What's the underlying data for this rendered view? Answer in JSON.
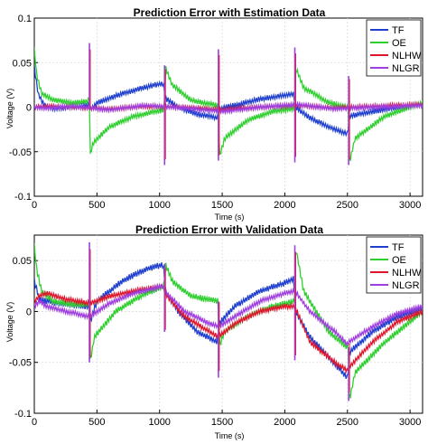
{
  "chart_data": [
    {
      "type": "line",
      "title": "Prediction Error with Estimation Data",
      "xlabel": "Time (s)",
      "ylabel": "Voltage (V)",
      "xlim": [
        0,
        3100
      ],
      "ylim": [
        -0.1,
        0.1
      ],
      "xticks": [
        0,
        500,
        1000,
        1500,
        2000,
        2500,
        3000
      ],
      "xtick_labels": [
        "0",
        "500",
        "1000",
        "1500",
        "2000",
        "2500",
        "3000"
      ],
      "yticks": [
        0.1,
        0.05,
        0,
        -0.05,
        -0.1
      ],
      "ytick_labels": [
        "0.1",
        "0.05",
        "0",
        "-0.05",
        "-0.1"
      ],
      "grid": true,
      "legend": "top-right",
      "series": [
        {
          "name": "TF",
          "color": "#1f3fcf",
          "x": [
            0,
            30,
            80,
            150,
            300,
            430,
            440,
            445,
            500,
            700,
            900,
            1030,
            1040,
            1045,
            1150,
            1300,
            1460,
            1470,
            1475,
            1600,
            1800,
            2000,
            2070,
            2080,
            2085,
            2200,
            2350,
            2500,
            2510,
            2515,
            2700,
            2900,
            3100
          ],
          "y": [
            0.045,
            0.015,
            0.002,
            -0.002,
            0.0,
            0.002,
            0.003,
            -0.003,
            0.005,
            0.015,
            0.023,
            0.027,
            0.018,
            0.01,
            0.0,
            -0.008,
            -0.012,
            -0.01,
            -0.002,
            0.002,
            0.009,
            0.013,
            0.015,
            0.005,
            0.0,
            -0.012,
            -0.022,
            -0.03,
            -0.02,
            -0.01,
            -0.005,
            0.0,
            0.003
          ]
        },
        {
          "name": "OE",
          "color": "#2fcf2f",
          "x": [
            0,
            20,
            60,
            150,
            300,
            430,
            440,
            445,
            470,
            600,
            800,
            1030,
            1040,
            1045,
            1100,
            1250,
            1460,
            1470,
            1475,
            1520,
            1700,
            1900,
            2070,
            2080,
            2085,
            2150,
            2350,
            2500,
            2510,
            2515,
            2560,
            2800,
            3100
          ],
          "y": [
            0.065,
            0.035,
            0.015,
            0.008,
            0.005,
            0.007,
            0.01,
            -0.055,
            -0.04,
            -0.022,
            -0.01,
            -0.003,
            -0.003,
            0.045,
            0.025,
            0.008,
            0.002,
            0.002,
            -0.058,
            -0.035,
            -0.015,
            -0.005,
            -0.002,
            -0.002,
            0.045,
            0.022,
            0.005,
            0.0,
            0.0,
            -0.063,
            -0.035,
            -0.01,
            0.005
          ]
        },
        {
          "name": "NLHW",
          "color": "#e0152b",
          "x": [
            0,
            100,
            300,
            600,
            900,
            1200,
            1500,
            1800,
            2100,
            2400,
            2700,
            3100
          ],
          "y": [
            0.0,
            0.001,
            0.0,
            -0.002,
            0.001,
            0.0,
            -0.003,
            0.0,
            0.002,
            -0.001,
            0.001,
            0.003
          ]
        },
        {
          "name": "NLGR",
          "color": "#9f3fdf",
          "x": [
            0,
            100,
            300,
            600,
            900,
            1200,
            1500,
            1800,
            2100,
            2400,
            2700,
            3100
          ],
          "y": [
            0.0,
            -0.001,
            0.001,
            -0.003,
            0.002,
            -0.001,
            -0.005,
            0.0,
            0.003,
            -0.002,
            0.0,
            0.002
          ]
        }
      ],
      "spikes": [
        {
          "x": 440,
          "top": 0.072,
          "bottom": -0.003
        },
        {
          "x": 1040,
          "top": 0.047,
          "bottom": -0.065
        },
        {
          "x": 1470,
          "top": 0.065,
          "bottom": -0.06
        },
        {
          "x": 2080,
          "top": 0.067,
          "bottom": -0.062
        },
        {
          "x": 2510,
          "top": 0.035,
          "bottom": -0.065
        }
      ]
    },
    {
      "type": "line",
      "title": "Prediction Error with Validation Data",
      "xlabel": "Time (s)",
      "ylabel": "Voltage (V)",
      "xlim": [
        0,
        3100
      ],
      "ylim": [
        -0.1,
        0.075
      ],
      "xticks": [
        0,
        500,
        1000,
        1500,
        2000,
        2500,
        3000
      ],
      "xtick_labels": [
        "0",
        "500",
        "1000",
        "1500",
        "2000",
        "2500",
        "3000"
      ],
      "yticks": [
        0.05,
        0,
        -0.05,
        -0.1
      ],
      "ytick_labels": [
        "0.05",
        "0",
        "-0.05",
        "-0.1"
      ],
      "grid": true,
      "legend": "top-right",
      "series": [
        {
          "name": "TF",
          "color": "#1f3fcf",
          "x": [
            0,
            40,
            100,
            200,
            330,
            430,
            440,
            445,
            500,
            700,
            900,
            1030,
            1040,
            1045,
            1150,
            1300,
            1460,
            1470,
            1475,
            1600,
            1800,
            2000,
            2070,
            2080,
            2085,
            2200,
            2350,
            2500,
            2510,
            2515,
            2700,
            2900,
            3100
          ],
          "y": [
            0.03,
            0.012,
            0.01,
            0.008,
            0.006,
            0.005,
            0.002,
            -0.01,
            0.01,
            0.03,
            0.042,
            0.046,
            0.035,
            0.02,
            0.0,
            -0.02,
            -0.03,
            -0.025,
            -0.012,
            0.005,
            0.02,
            0.028,
            0.032,
            0.015,
            0.0,
            -0.025,
            -0.045,
            -0.065,
            -0.055,
            -0.04,
            -0.02,
            -0.005,
            0.003
          ]
        },
        {
          "name": "OE",
          "color": "#2fcf2f",
          "x": [
            0,
            20,
            60,
            150,
            300,
            430,
            440,
            445,
            480,
            650,
            850,
            1030,
            1040,
            1045,
            1100,
            1250,
            1460,
            1470,
            1475,
            1520,
            1700,
            1900,
            2070,
            2080,
            2085,
            2150,
            2350,
            2500,
            2510,
            2515,
            2560,
            2800,
            3100
          ],
          "y": [
            0.065,
            0.04,
            0.02,
            0.01,
            0.007,
            0.007,
            0.008,
            -0.05,
            -0.025,
            0.0,
            0.015,
            0.025,
            0.027,
            0.047,
            0.03,
            0.015,
            0.01,
            0.01,
            -0.035,
            -0.02,
            -0.005,
            0.005,
            0.01,
            0.012,
            0.065,
            0.02,
            -0.02,
            -0.035,
            -0.035,
            -0.088,
            -0.06,
            -0.03,
            0.0
          ]
        },
        {
          "name": "NLHW",
          "color": "#e0152b",
          "x": [
            0,
            40,
            100,
            250,
            440,
            600,
            800,
            1030,
            1040,
            1200,
            1400,
            1470,
            1600,
            1800,
            2000,
            2080,
            2200,
            2400,
            2500,
            2510,
            2700,
            2900,
            3100
          ],
          "y": [
            0.01,
            0.015,
            0.018,
            0.012,
            0.008,
            0.015,
            0.02,
            0.025,
            0.018,
            -0.005,
            -0.02,
            -0.025,
            -0.012,
            0.0,
            0.005,
            0.005,
            -0.03,
            -0.05,
            -0.058,
            -0.055,
            -0.03,
            -0.01,
            0.0
          ]
        },
        {
          "name": "NLGR",
          "color": "#9f3fdf",
          "x": [
            0,
            40,
            100,
            250,
            440,
            600,
            800,
            1030,
            1040,
            1200,
            1400,
            1470,
            1600,
            1800,
            2000,
            2080,
            2200,
            2400,
            2500,
            2510,
            2700,
            2900,
            3100
          ],
          "y": [
            0.005,
            0.01,
            0.005,
            0.0,
            -0.005,
            0.008,
            0.018,
            0.025,
            0.02,
            0.0,
            -0.012,
            -0.015,
            -0.005,
            0.01,
            0.018,
            0.02,
            0.0,
            -0.02,
            -0.032,
            -0.03,
            -0.015,
            -0.002,
            0.005
          ]
        }
      ],
      "spikes": [
        {
          "x": 440,
          "top": 0.068,
          "bottom": -0.05
        },
        {
          "x": 1040,
          "top": 0.047,
          "bottom": -0.02
        },
        {
          "x": 1470,
          "top": 0.01,
          "bottom": -0.065
        },
        {
          "x": 2080,
          "top": 0.065,
          "bottom": -0.048
        },
        {
          "x": 2510,
          "top": -0.035,
          "bottom": -0.088
        }
      ]
    }
  ]
}
